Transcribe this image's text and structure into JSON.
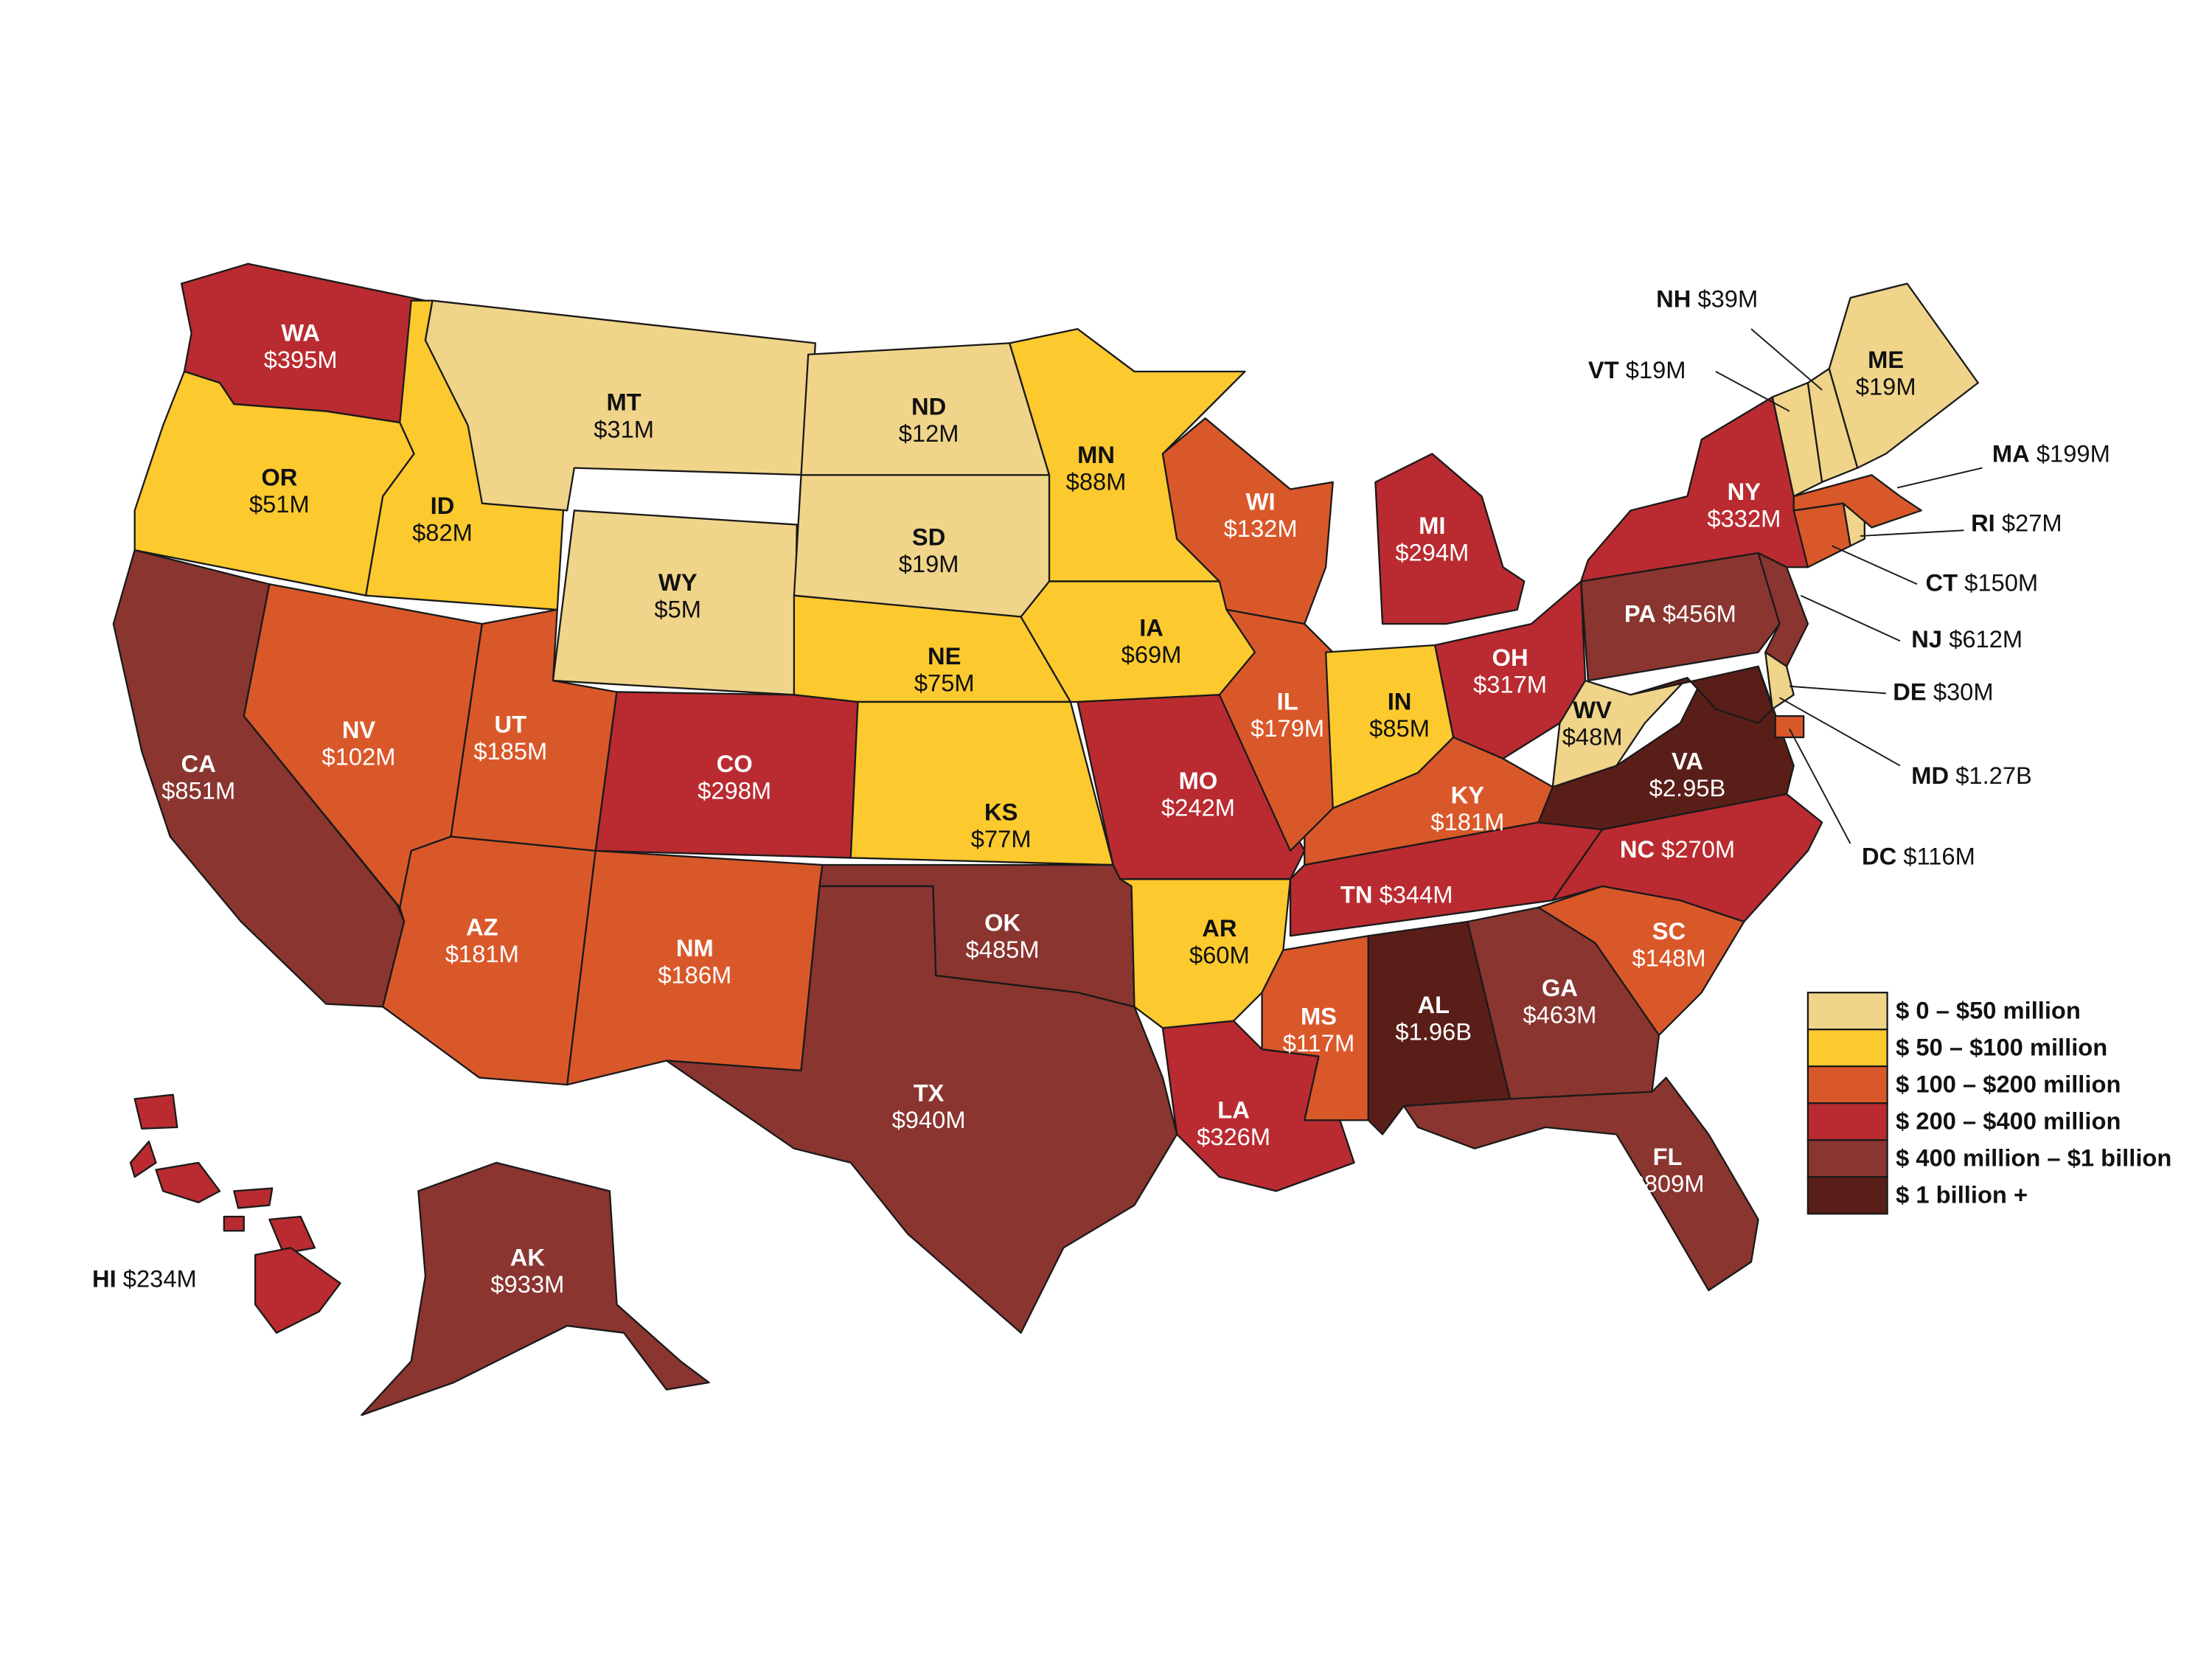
{
  "states": [
    {
      "code": "WA",
      "amount": "$395M",
      "color": "#b92b30"
    },
    {
      "code": "OR",
      "amount": "$51M",
      "color": "#fcc92f"
    },
    {
      "code": "CA",
      "amount": "$851M",
      "color": "#8a3530"
    },
    {
      "code": "NV",
      "amount": "$102M",
      "color": "#d9582a"
    },
    {
      "code": "ID",
      "amount": "$82M",
      "color": "#fcc92f"
    },
    {
      "code": "MT",
      "amount": "$31M",
      "color": "#f0d48a"
    },
    {
      "code": "WY",
      "amount": "$5M",
      "color": "#f0d48a"
    },
    {
      "code": "UT",
      "amount": "$185M",
      "color": "#d9582a"
    },
    {
      "code": "AZ",
      "amount": "$181M",
      "color": "#d9582a"
    },
    {
      "code": "CO",
      "amount": "$298M",
      "color": "#b92b30"
    },
    {
      "code": "NM",
      "amount": "$186M",
      "color": "#d9582a"
    },
    {
      "code": "ND",
      "amount": "$12M",
      "color": "#f0d48a"
    },
    {
      "code": "SD",
      "amount": "$19M",
      "color": "#f0d48a"
    },
    {
      "code": "NE",
      "amount": "$75M",
      "color": "#fcc92f"
    },
    {
      "code": "KS",
      "amount": "$77M",
      "color": "#fcc92f"
    },
    {
      "code": "OK",
      "amount": "$485M",
      "color": "#8a3530"
    },
    {
      "code": "TX",
      "amount": "$940M",
      "color": "#8a3530"
    },
    {
      "code": "MN",
      "amount": "$88M",
      "color": "#fcc92f"
    },
    {
      "code": "IA",
      "amount": "$69M",
      "color": "#fcc92f"
    },
    {
      "code": "MO",
      "amount": "$242M",
      "color": "#b92b30"
    },
    {
      "code": "AR",
      "amount": "$60M",
      "color": "#fcc92f"
    },
    {
      "code": "LA",
      "amount": "$326M",
      "color": "#b92b30"
    },
    {
      "code": "WI",
      "amount": "$132M",
      "color": "#d9582a"
    },
    {
      "code": "IL",
      "amount": "$179M",
      "color": "#d9582a"
    },
    {
      "code": "MI",
      "amount": "$294M",
      "color": "#b92b30"
    },
    {
      "code": "IN",
      "amount": "$85M",
      "color": "#fcc92f"
    },
    {
      "code": "OH",
      "amount": "$317M",
      "color": "#b92b30"
    },
    {
      "code": "KY",
      "amount": "$181M",
      "color": "#d9582a"
    },
    {
      "code": "TN",
      "amount": "$344M",
      "color": "#b92b30"
    },
    {
      "code": "MS",
      "amount": "$117M",
      "color": "#d9582a"
    },
    {
      "code": "AL",
      "amount": "$1.96B",
      "color": "#5a1e18"
    },
    {
      "code": "GA",
      "amount": "$463M",
      "color": "#8a3530"
    },
    {
      "code": "FL",
      "amount": "$809M",
      "color": "#8a3530"
    },
    {
      "code": "SC",
      "amount": "$148M",
      "color": "#d9582a"
    },
    {
      "code": "NC",
      "amount": "$270M",
      "color": "#b92b30"
    },
    {
      "code": "VA",
      "amount": "$2.95B",
      "color": "#5a1e18"
    },
    {
      "code": "WV",
      "amount": "$48M",
      "color": "#f0d48a"
    },
    {
      "code": "PA",
      "amount": "$456M",
      "color": "#8a3530"
    },
    {
      "code": "NY",
      "amount": "$332M",
      "color": "#b92b30"
    },
    {
      "code": "NJ",
      "amount": "$612M",
      "color": "#8a3530"
    },
    {
      "code": "MD",
      "amount": "$1.27B",
      "color": "#5a1e18"
    },
    {
      "code": "DE",
      "amount": "$30M",
      "color": "#f0d48a"
    },
    {
      "code": "DC",
      "amount": "$116M",
      "color": "#d9582a"
    },
    {
      "code": "CT",
      "amount": "$150M",
      "color": "#d9582a"
    },
    {
      "code": "RI",
      "amount": "$27M",
      "color": "#f0d48a"
    },
    {
      "code": "MA",
      "amount": "$199M",
      "color": "#d9582a"
    },
    {
      "code": "VT",
      "amount": "$19M",
      "color": "#f0d48a"
    },
    {
      "code": "NH",
      "amount": "$39M",
      "color": "#f0d48a"
    },
    {
      "code": "ME",
      "amount": "$19M",
      "color": "#f0d48a"
    },
    {
      "code": "HI",
      "amount": "$234M",
      "color": "#b92b30"
    },
    {
      "code": "AK",
      "amount": "$933M",
      "color": "#8a3530"
    }
  ],
  "legend": [
    {
      "label": "$ 0 – $50 million",
      "color": "#f0d48a"
    },
    {
      "label": "$ 50 – $100 million",
      "color": "#fcc92f"
    },
    {
      "label": "$ 100 – $200 million",
      "color": "#d9582a"
    },
    {
      "label": "$ 200 – $400 million",
      "color": "#b92b30"
    },
    {
      "label": "$ 400 million – $1 billion",
      "color": "#8a3530"
    },
    {
      "label": "$ 1 billion +",
      "color": "#5a1e18"
    }
  ]
}
